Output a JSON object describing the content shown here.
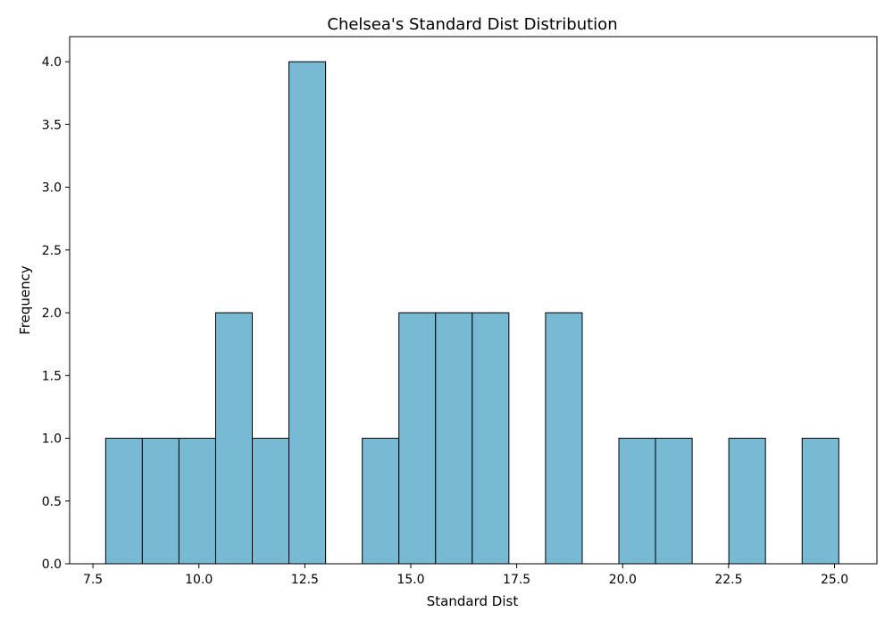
{
  "colors": {
    "bar_fill": "#78bad3",
    "bar_edge": "#000000",
    "axis": "#000000",
    "background": "#ffffff"
  },
  "chart_data": {
    "type": "bar",
    "title": "Chelsea's Standard Dist Distribution",
    "xlabel": "Standard Dist",
    "ylabel": "Frequency",
    "xlim": [
      6.95,
      26.0
    ],
    "ylim": [
      0,
      4.2
    ],
    "grid": false,
    "legend": "none",
    "bins": [
      {
        "start": 7.8,
        "end": 8.665,
        "count": 1
      },
      {
        "start": 8.665,
        "end": 9.53,
        "count": 1
      },
      {
        "start": 9.53,
        "end": 10.395,
        "count": 1
      },
      {
        "start": 10.395,
        "end": 11.26,
        "count": 2
      },
      {
        "start": 11.26,
        "end": 12.125,
        "count": 1
      },
      {
        "start": 12.125,
        "end": 12.99,
        "count": 4
      },
      {
        "start": 12.99,
        "end": 13.855,
        "count": 0
      },
      {
        "start": 13.855,
        "end": 14.72,
        "count": 1
      },
      {
        "start": 14.72,
        "end": 15.585,
        "count": 2
      },
      {
        "start": 15.585,
        "end": 16.45,
        "count": 2
      },
      {
        "start": 16.45,
        "end": 17.315,
        "count": 2
      },
      {
        "start": 17.315,
        "end": 18.18,
        "count": 0
      },
      {
        "start": 18.18,
        "end": 19.045,
        "count": 2
      },
      {
        "start": 19.045,
        "end": 19.91,
        "count": 0
      },
      {
        "start": 19.91,
        "end": 20.775,
        "count": 1
      },
      {
        "start": 20.775,
        "end": 21.64,
        "count": 1
      },
      {
        "start": 21.64,
        "end": 22.505,
        "count": 0
      },
      {
        "start": 22.505,
        "end": 23.37,
        "count": 1
      },
      {
        "start": 23.37,
        "end": 24.235,
        "count": 0
      },
      {
        "start": 24.235,
        "end": 25.1,
        "count": 1
      }
    ],
    "x_ticks": [
      {
        "value": 7.5,
        "label": "7.5"
      },
      {
        "value": 10.0,
        "label": "10.0"
      },
      {
        "value": 12.5,
        "label": "12.5"
      },
      {
        "value": 15.0,
        "label": "15.0"
      },
      {
        "value": 17.5,
        "label": "17.5"
      },
      {
        "value": 20.0,
        "label": "20.0"
      },
      {
        "value": 22.5,
        "label": "22.5"
      },
      {
        "value": 25.0,
        "label": "25.0"
      }
    ],
    "y_ticks": [
      {
        "value": 0.0,
        "label": "0.0"
      },
      {
        "value": 0.5,
        "label": "0.5"
      },
      {
        "value": 1.0,
        "label": "1.0"
      },
      {
        "value": 1.5,
        "label": "1.5"
      },
      {
        "value": 2.0,
        "label": "2.0"
      },
      {
        "value": 2.5,
        "label": "2.5"
      },
      {
        "value": 3.0,
        "label": "3.0"
      },
      {
        "value": 3.5,
        "label": "3.5"
      },
      {
        "value": 4.0,
        "label": "4.0"
      }
    ]
  }
}
